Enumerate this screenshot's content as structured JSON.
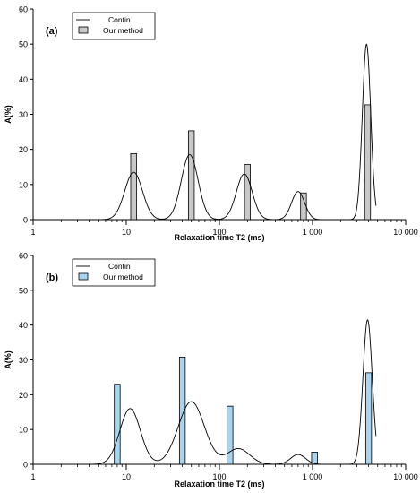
{
  "chart_data": [
    {
      "type": "bar",
      "panel_label": "(a)",
      "xlabel": "Relaxation time T2 (ms)",
      "ylabel": "A(%)",
      "xscale": "log",
      "xlim": [
        1,
        10000
      ],
      "ylim": [
        0,
        60
      ],
      "x_tick_labels": [
        "1",
        "10",
        "100",
        "1 000",
        "10 000"
      ],
      "x_tick_values": [
        1,
        10,
        100,
        1000,
        10000
      ],
      "y_tick_labels": [
        "0",
        "10",
        "20",
        "30",
        "40",
        "50",
        "60"
      ],
      "y_tick_values": [
        0,
        10,
        20,
        30,
        40,
        50,
        60
      ],
      "legend": {
        "position": "top-left",
        "entries": [
          "Contin",
          "Our method"
        ]
      },
      "bar_color": "#c8c8c8",
      "series": [
        {
          "name": "Contin",
          "style": "line",
          "peaks": [
            {
              "center": 12,
              "height": 13.5,
              "sigma": 0.095
            },
            {
              "center": 48,
              "height": 18.5,
              "sigma": 0.09
            },
            {
              "center": 185,
              "height": 13,
              "sigma": 0.085
            },
            {
              "center": 700,
              "height": 8,
              "sigma": 0.07
            },
            {
              "center": 3800,
              "height": 50,
              "sigma": 0.045
            }
          ],
          "x_range": [
            1,
            4800
          ]
        },
        {
          "name": "Our method",
          "style": "bar",
          "x": [
            12,
            50,
            200,
            800,
            3900
          ],
          "values": [
            18.8,
            25.3,
            15.7,
            7.6,
            32.7
          ]
        }
      ]
    },
    {
      "type": "bar",
      "panel_label": "(b)",
      "xlabel": "Relaxation time T2 (ms)",
      "ylabel": "A(%)",
      "xscale": "log",
      "xlim": [
        1,
        10000
      ],
      "ylim": [
        0,
        60
      ],
      "x_tick_labels": [
        "1",
        "10",
        "100",
        "1 000",
        "10 000"
      ],
      "x_tick_values": [
        1,
        10,
        100,
        1000,
        10000
      ],
      "y_tick_labels": [
        "0",
        "10",
        "20",
        "30",
        "40",
        "50",
        "60"
      ],
      "y_tick_values": [
        0,
        10,
        20,
        30,
        40,
        50,
        60
      ],
      "legend": {
        "position": "top-left",
        "entries": [
          "Contin",
          "Our method"
        ]
      },
      "bar_color": "#a8d4ee",
      "series": [
        {
          "name": "Contin",
          "style": "line",
          "peaks": [
            {
              "center": 11,
              "height": 16,
              "sigma": 0.11
            },
            {
              "center": 50,
              "height": 18,
              "sigma": 0.14
            },
            {
              "center": 160,
              "height": 4.5,
              "sigma": 0.12
            },
            {
              "center": 700,
              "height": 2.8,
              "sigma": 0.08
            },
            {
              "center": 3900,
              "height": 41.5,
              "sigma": 0.05
            }
          ],
          "x_range": [
            1,
            4800
          ]
        },
        {
          "name": "Our method",
          "style": "bar",
          "x": [
            8,
            40,
            130,
            1050,
            4000
          ],
          "values": [
            23,
            30.8,
            16.7,
            3.5,
            26.3
          ]
        }
      ]
    }
  ]
}
